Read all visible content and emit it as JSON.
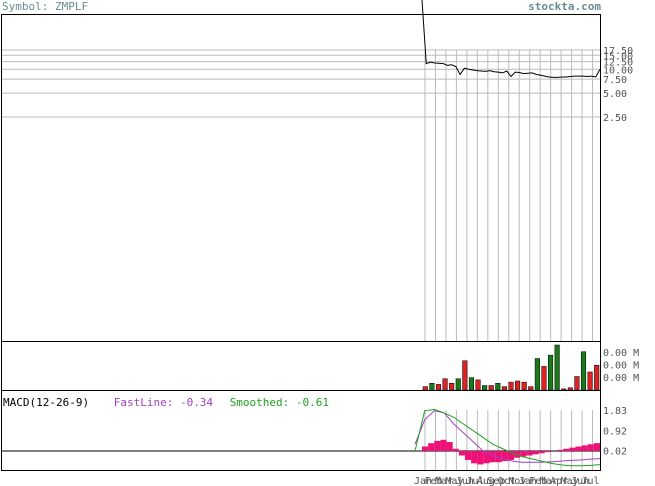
{
  "header": {
    "symbol": "Symbol: ZMPLF",
    "site": "stockta.com"
  },
  "price_axis": [
    "17.50",
    "15.00",
    "12.50",
    "10.00",
    "7.50",
    "5.00",
    "2.50"
  ],
  "volume_axis": [
    "0.00 M",
    "0.00 M",
    "0.00 M"
  ],
  "macd": {
    "title": "MACD(12-26-9)",
    "fast": "FastLine: -0.34",
    "smooth": "Smoothed: -0.61",
    "axis": [
      "1.83",
      "0.92",
      "0.02"
    ]
  },
  "months": [
    "Jan",
    "Feb",
    "Mar",
    "May",
    "Jun",
    "Jul",
    "Aug",
    "Sep",
    "Oct",
    "Nov",
    "Jan",
    "Feb",
    "Mar",
    "Apr",
    "May",
    "Jun",
    "Jul"
  ],
  "colors": {
    "up": "#1a7a1a",
    "down": "#dd2222",
    "macd_hist": "#ee1177",
    "fast": "#a040c0",
    "smooth": "#20a020",
    "grid": "#bbbbbb"
  },
  "chart_data": {
    "type": "line",
    "price": [
      20.0,
      11.8,
      12.3,
      12.0,
      11.9,
      11.8,
      11.2,
      11.4,
      10.8,
      8.6,
      10.3,
      10.0,
      9.8,
      9.6,
      9.5,
      9.4,
      9.6,
      9.3,
      9.2,
      9.0,
      9.5,
      8.1,
      9.2,
      9.1,
      8.8,
      8.9,
      9.0,
      8.6,
      8.4,
      8.2,
      8.0,
      7.9,
      7.9,
      8.0,
      8.0,
      8.1,
      8.2,
      8.2,
      8.2,
      8.1,
      8.2,
      8.0,
      10.0
    ],
    "volume": [
      {
        "v": 0.3,
        "up": false
      },
      {
        "v": 0.6,
        "up": true
      },
      {
        "v": 0.5,
        "up": false
      },
      {
        "v": 1.0,
        "up": false
      },
      {
        "v": 0.6,
        "up": false
      },
      {
        "v": 1.0,
        "up": true
      },
      {
        "v": 2.6,
        "up": false
      },
      {
        "v": 1.1,
        "up": true
      },
      {
        "v": 0.9,
        "up": false
      },
      {
        "v": 0.4,
        "up": true
      },
      {
        "v": 0.4,
        "up": false
      },
      {
        "v": 0.6,
        "up": true
      },
      {
        "v": 0.3,
        "up": false
      },
      {
        "v": 0.7,
        "up": false
      },
      {
        "v": 0.8,
        "up": false
      },
      {
        "v": 0.7,
        "up": false
      },
      {
        "v": 0.3,
        "up": false
      },
      {
        "v": 2.8,
        "up": true
      },
      {
        "v": 2.1,
        "up": false
      },
      {
        "v": 3.1,
        "up": true
      },
      {
        "v": 4.0,
        "up": true
      },
      {
        "v": 0.1,
        "up": false
      },
      {
        "v": 0.2,
        "up": false
      },
      {
        "v": 1.2,
        "up": false
      },
      {
        "v": 3.4,
        "up": true
      },
      {
        "v": 1.6,
        "up": false
      },
      {
        "v": 2.2,
        "up": false
      }
    ],
    "macd_hist": [
      0.2,
      0.35,
      0.45,
      0.5,
      0.4,
      0.1,
      -0.2,
      -0.4,
      -0.55,
      -0.6,
      -0.55,
      -0.5,
      -0.5,
      -0.45,
      -0.4,
      -0.3,
      -0.25,
      -0.2,
      -0.15,
      -0.1,
      -0.05,
      0.0,
      0.05,
      0.1,
      0.15,
      0.2,
      0.25,
      0.3,
      0.35
    ],
    "macd_fast": [
      0.3,
      1.4,
      1.8,
      1.7,
      1.2,
      0.8,
      0.4,
      0.0,
      -0.2,
      -0.35,
      -0.45,
      -0.5,
      -0.5,
      -0.5,
      -0.48,
      -0.45,
      -0.42,
      -0.4,
      -0.36,
      -0.34
    ],
    "macd_smooth": [
      0.0,
      1.8,
      1.85,
      1.7,
      1.5,
      1.2,
      0.9,
      0.6,
      0.3,
      0.1,
      -0.1,
      -0.25,
      -0.35,
      -0.45,
      -0.55,
      -0.62,
      -0.66,
      -0.66,
      -0.64,
      -0.61
    ]
  }
}
